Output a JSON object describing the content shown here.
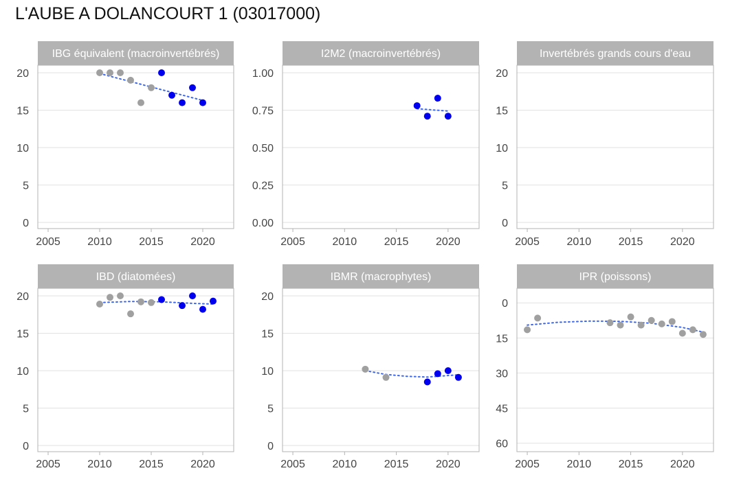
{
  "page_title": "L'AUBE A DOLANCOURT 1 (03017000)",
  "colors": {
    "historic_point": "#a0a0a0",
    "recent_point": "#0000ee",
    "trend_line": "#4169e1",
    "strip_fill": "#b3b3b3",
    "panel_border": "#b3b3b3",
    "grid": "#e2e2e2"
  },
  "chart_data": [
    {
      "type": "scatter",
      "title": "IBG équivalent (macroinvertébrés)",
      "xlim": [
        2004,
        2023
      ],
      "ylim": [
        0,
        20
      ],
      "y_reversed": false,
      "x_ticks": [
        "2005",
        "2010",
        "2015",
        "2020"
      ],
      "y_ticks": [
        "0",
        "5",
        "10",
        "15",
        "20"
      ],
      "points": [
        {
          "x": 2010,
          "y": 20,
          "recent": false
        },
        {
          "x": 2011,
          "y": 20,
          "recent": false
        },
        {
          "x": 2012,
          "y": 20,
          "recent": false
        },
        {
          "x": 2013,
          "y": 19,
          "recent": false
        },
        {
          "x": 2014,
          "y": 16,
          "recent": false
        },
        {
          "x": 2015,
          "y": 18,
          "recent": false
        },
        {
          "x": 2016,
          "y": 20,
          "recent": true
        },
        {
          "x": 2017,
          "y": 17,
          "recent": true
        },
        {
          "x": 2018,
          "y": 16,
          "recent": true
        },
        {
          "x": 2019,
          "y": 18,
          "recent": true
        },
        {
          "x": 2020,
          "y": 16,
          "recent": true
        }
      ],
      "trend": [
        {
          "x": 2010,
          "y": 19.9
        },
        {
          "x": 2015,
          "y": 18.1
        },
        {
          "x": 2020,
          "y": 16.3
        }
      ]
    },
    {
      "type": "scatter",
      "title": "I2M2 (macroinvertébrés)",
      "xlim": [
        2004,
        2023
      ],
      "ylim": [
        0,
        1
      ],
      "y_reversed": false,
      "x_ticks": [
        "2005",
        "2010",
        "2015",
        "2020"
      ],
      "y_ticks": [
        "0.00",
        "0.25",
        "0.50",
        "0.75",
        "1.00"
      ],
      "points": [
        {
          "x": 2017,
          "y": 0.78,
          "recent": true
        },
        {
          "x": 2018,
          "y": 0.71,
          "recent": true
        },
        {
          "x": 2019,
          "y": 0.83,
          "recent": true
        },
        {
          "x": 2020,
          "y": 0.71,
          "recent": true
        }
      ],
      "trend": [
        {
          "x": 2017,
          "y": 0.76
        },
        {
          "x": 2018.5,
          "y": 0.752
        },
        {
          "x": 2020,
          "y": 0.744
        }
      ]
    },
    {
      "type": "scatter",
      "title": "Invertébrés grands cours d'eau",
      "xlim": [
        2004,
        2023
      ],
      "ylim": [
        0,
        20
      ],
      "y_reversed": false,
      "x_ticks": [
        "2005",
        "2010",
        "2015",
        "2020"
      ],
      "y_ticks": [
        "0",
        "5",
        "10",
        "15",
        "20"
      ],
      "points": [],
      "trend": []
    },
    {
      "type": "scatter",
      "title": "IBD (diatomées)",
      "xlim": [
        2004,
        2023
      ],
      "ylim": [
        0,
        20
      ],
      "y_reversed": false,
      "x_ticks": [
        "2005",
        "2010",
        "2015",
        "2020"
      ],
      "y_ticks": [
        "0",
        "5",
        "10",
        "15",
        "20"
      ],
      "points": [
        {
          "x": 2010,
          "y": 18.9,
          "recent": false
        },
        {
          "x": 2011,
          "y": 19.8,
          "recent": false
        },
        {
          "x": 2012,
          "y": 20.0,
          "recent": false
        },
        {
          "x": 2013,
          "y": 17.6,
          "recent": false
        },
        {
          "x": 2014,
          "y": 19.2,
          "recent": false
        },
        {
          "x": 2015,
          "y": 19.1,
          "recent": false
        },
        {
          "x": 2016,
          "y": 19.5,
          "recent": true
        },
        {
          "x": 2018,
          "y": 18.7,
          "recent": true
        },
        {
          "x": 2019,
          "y": 20.0,
          "recent": true
        },
        {
          "x": 2020,
          "y": 18.2,
          "recent": true
        },
        {
          "x": 2021,
          "y": 19.3,
          "recent": true
        }
      ],
      "trend": [
        {
          "x": 2010,
          "y": 19.1
        },
        {
          "x": 2013,
          "y": 19.25
        },
        {
          "x": 2016,
          "y": 19.2
        },
        {
          "x": 2019,
          "y": 19.0
        },
        {
          "x": 2021,
          "y": 18.9
        }
      ]
    },
    {
      "type": "scatter",
      "title": "IBMR (macrophytes)",
      "xlim": [
        2004,
        2023
      ],
      "ylim": [
        0,
        20
      ],
      "y_reversed": false,
      "x_ticks": [
        "2005",
        "2010",
        "2015",
        "2020"
      ],
      "y_ticks": [
        "0",
        "5",
        "10",
        "15",
        "20"
      ],
      "points": [
        {
          "x": 2012,
          "y": 10.2,
          "recent": false
        },
        {
          "x": 2014,
          "y": 9.1,
          "recent": false
        },
        {
          "x": 2018,
          "y": 8.5,
          "recent": true
        },
        {
          "x": 2019,
          "y": 9.6,
          "recent": true
        },
        {
          "x": 2020,
          "y": 10.0,
          "recent": true
        },
        {
          "x": 2021,
          "y": 9.1,
          "recent": true
        }
      ],
      "trend": [
        {
          "x": 2012,
          "y": 10.0
        },
        {
          "x": 2014,
          "y": 9.5
        },
        {
          "x": 2016,
          "y": 9.25
        },
        {
          "x": 2018,
          "y": 9.15
        },
        {
          "x": 2021,
          "y": 9.45
        }
      ]
    },
    {
      "type": "scatter",
      "title": "IPR (poissons)",
      "xlim": [
        2004,
        2023
      ],
      "ylim": [
        -3,
        61
      ],
      "y_reversed": true,
      "x_ticks": [
        "2005",
        "2010",
        "2015",
        "2020"
      ],
      "y_ticks": [
        "0",
        "15",
        "30",
        "45",
        "60"
      ],
      "points": [
        {
          "x": 2005,
          "y": 11.5,
          "recent": false
        },
        {
          "x": 2006,
          "y": 6.5,
          "recent": false
        },
        {
          "x": 2013,
          "y": 8.5,
          "recent": false
        },
        {
          "x": 2014,
          "y": 9.5,
          "recent": false
        },
        {
          "x": 2015,
          "y": 6.0,
          "recent": false
        },
        {
          "x": 2016,
          "y": 9.5,
          "recent": false
        },
        {
          "x": 2017,
          "y": 7.5,
          "recent": false
        },
        {
          "x": 2018,
          "y": 9.0,
          "recent": false
        },
        {
          "x": 2019,
          "y": 8.0,
          "recent": false
        },
        {
          "x": 2020,
          "y": 13.0,
          "recent": false
        },
        {
          "x": 2021,
          "y": 11.5,
          "recent": false
        },
        {
          "x": 2022,
          "y": 13.5,
          "recent": false
        }
      ],
      "trend": [
        {
          "x": 2005,
          "y": 9.5
        },
        {
          "x": 2008,
          "y": 8.3
        },
        {
          "x": 2011,
          "y": 7.8
        },
        {
          "x": 2014,
          "y": 7.9
        },
        {
          "x": 2017,
          "y": 8.7
        },
        {
          "x": 2020,
          "y": 10.5
        },
        {
          "x": 2022,
          "y": 12.5
        }
      ]
    }
  ]
}
